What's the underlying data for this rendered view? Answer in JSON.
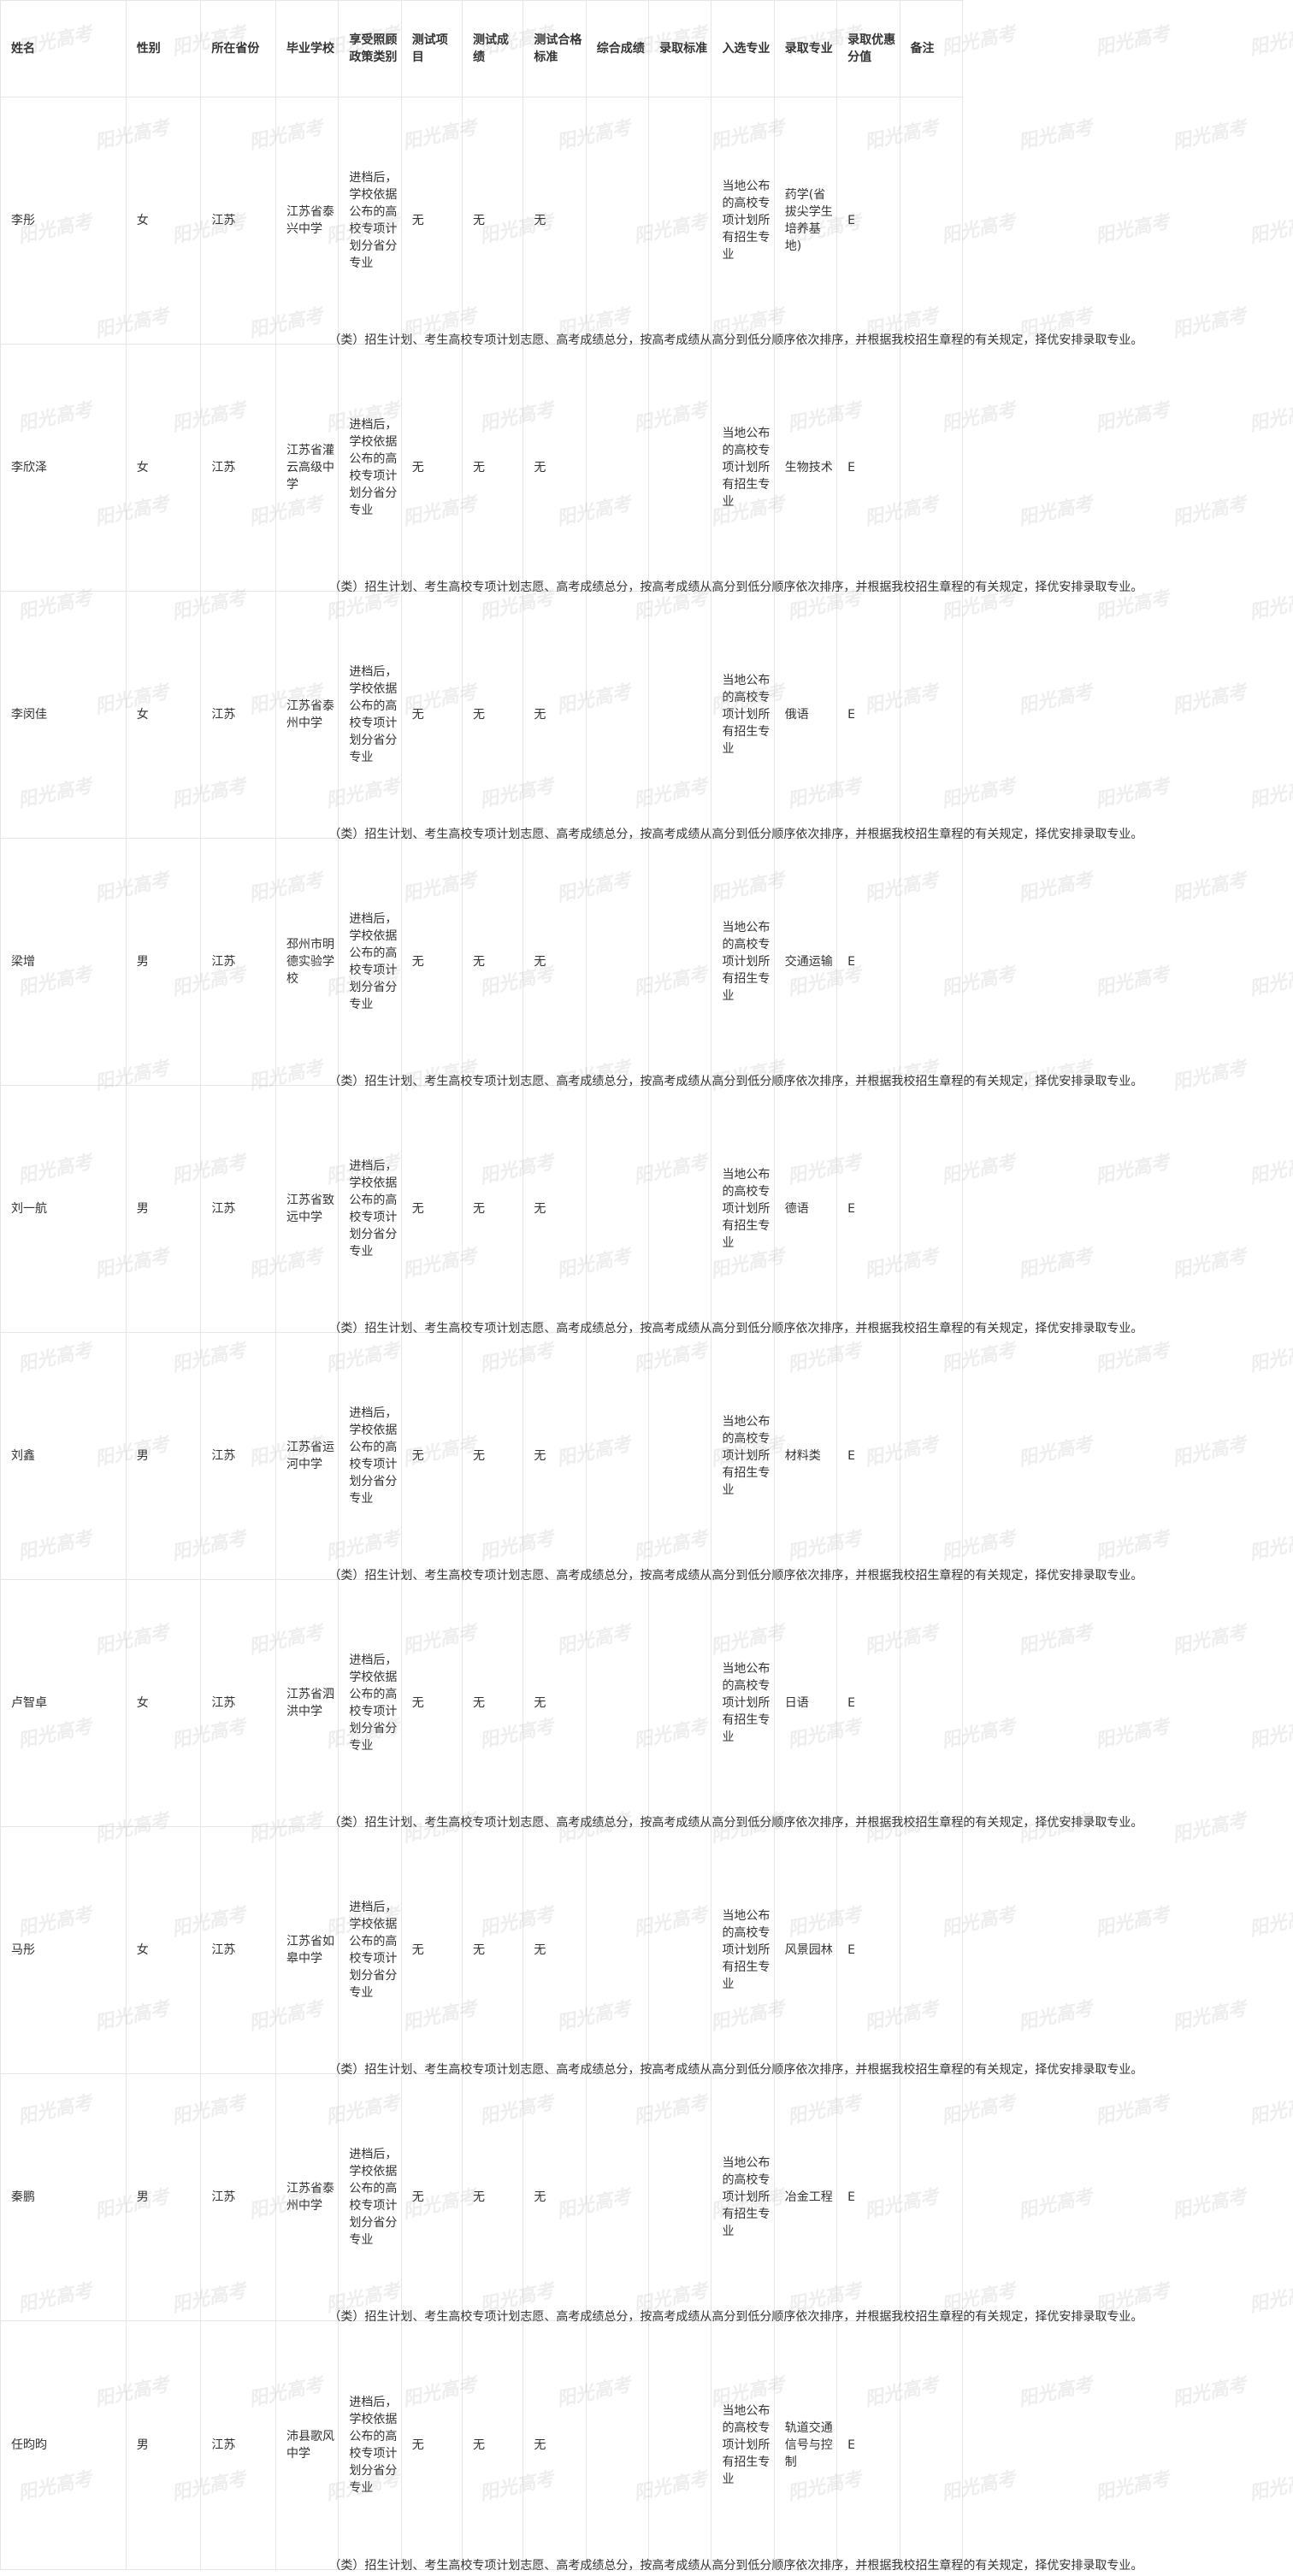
{
  "headers": [
    "姓名",
    "性别",
    "所在省份",
    "毕业学校",
    "享受照顾政策类别",
    "测试项目",
    "测试成绩",
    "测试合格标准",
    "综合成绩",
    "录取标准",
    "入选专业",
    "录取专业",
    "录取优惠分值",
    "备注"
  ],
  "watermark": "阳光高考",
  "rows": [
    {
      "name": "李彤",
      "gender": "女",
      "province": "江苏",
      "school": "江苏省泰兴中学",
      "policy_col": "进档后，学校依据公布的高校专项计划分省分专业",
      "policy_tail": "（类）招生计划、考生高校专项计划志愿、高考成绩总分，按高考成绩从高分到低分顺序依次排序，并根据我校招生章程的有关规定，择优安排录取专业。",
      "test_item": "无",
      "test_score": "无",
      "test_std": "无",
      "composite": "",
      "admit_std": "",
      "selected_major": "当地公布的高校专项计划所有招生专业",
      "admit_major": "药学(省拔尖学生培养基地)",
      "bonus": "E",
      "remark": ""
    },
    {
      "name": "李欣泽",
      "gender": "女",
      "province": "江苏",
      "school": "江苏省灌云高级中学",
      "policy_col": "进档后，学校依据公布的高校专项计划分省分专业",
      "policy_tail": "（类）招生计划、考生高校专项计划志愿、高考成绩总分，按高考成绩从高分到低分顺序依次排序，并根据我校招生章程的有关规定，择优安排录取专业。",
      "test_item": "无",
      "test_score": "无",
      "test_std": "无",
      "composite": "",
      "admit_std": "",
      "selected_major": "当地公布的高校专项计划所有招生专业",
      "admit_major": "生物技术",
      "bonus": "E",
      "remark": ""
    },
    {
      "name": "李闵佳",
      "gender": "女",
      "province": "江苏",
      "school": "江苏省泰州中学",
      "policy_col": "进档后，学校依据公布的高校专项计划分省分专业",
      "policy_tail": "（类）招生计划、考生高校专项计划志愿、高考成绩总分，按高考成绩从高分到低分顺序依次排序，并根据我校招生章程的有关规定，择优安排录取专业。",
      "test_item": "无",
      "test_score": "无",
      "test_std": "无",
      "composite": "",
      "admit_std": "",
      "selected_major": "当地公布的高校专项计划所有招生专业",
      "admit_major": "俄语",
      "bonus": "E",
      "remark": ""
    },
    {
      "name": "梁增",
      "gender": "男",
      "province": "江苏",
      "school": "邳州市明德实验学校",
      "policy_col": "进档后，学校依据公布的高校专项计划分省分专业",
      "policy_tail": "（类）招生计划、考生高校专项计划志愿、高考成绩总分，按高考成绩从高分到低分顺序依次排序，并根据我校招生章程的有关规定，择优安排录取专业。",
      "test_item": "无",
      "test_score": "无",
      "test_std": "无",
      "composite": "",
      "admit_std": "",
      "selected_major": "当地公布的高校专项计划所有招生专业",
      "admit_major": "交通运输",
      "bonus": "E",
      "remark": ""
    },
    {
      "name": "刘一航",
      "gender": "男",
      "province": "江苏",
      "school": "江苏省致远中学",
      "policy_col": "进档后，学校依据公布的高校专项计划分省分专业",
      "policy_tail": "（类）招生计划、考生高校专项计划志愿、高考成绩总分，按高考成绩从高分到低分顺序依次排序，并根据我校招生章程的有关规定，择优安排录取专业。",
      "test_item": "无",
      "test_score": "无",
      "test_std": "无",
      "composite": "",
      "admit_std": "",
      "selected_major": "当地公布的高校专项计划所有招生专业",
      "admit_major": "德语",
      "bonus": "E",
      "remark": ""
    },
    {
      "name": "刘鑫",
      "gender": "男",
      "province": "江苏",
      "school": "江苏省运河中学",
      "policy_col": "进档后，学校依据公布的高校专项计划分省分专业",
      "policy_tail": "（类）招生计划、考生高校专项计划志愿、高考成绩总分，按高考成绩从高分到低分顺序依次排序，并根据我校招生章程的有关规定，择优安排录取专业。",
      "test_item": "无",
      "test_score": "无",
      "test_std": "无",
      "composite": "",
      "admit_std": "",
      "selected_major": "当地公布的高校专项计划所有招生专业",
      "admit_major": "材料类",
      "bonus": "E",
      "remark": ""
    },
    {
      "name": "卢智卓",
      "gender": "女",
      "province": "江苏",
      "school": "江苏省泗洪中学",
      "policy_col": "进档后，学校依据公布的高校专项计划分省分专业",
      "policy_tail": "（类）招生计划、考生高校专项计划志愿、高考成绩总分，按高考成绩从高分到低分顺序依次排序，并根据我校招生章程的有关规定，择优安排录取专业。",
      "test_item": "无",
      "test_score": "无",
      "test_std": "无",
      "composite": "",
      "admit_std": "",
      "selected_major": "当地公布的高校专项计划所有招生专业",
      "admit_major": "日语",
      "bonus": "E",
      "remark": ""
    },
    {
      "name": "马彤",
      "gender": "女",
      "province": "江苏",
      "school": "江苏省如皋中学",
      "policy_col": "进档后，学校依据公布的高校专项计划分省分专业",
      "policy_tail": "（类）招生计划、考生高校专项计划志愿、高考成绩总分，按高考成绩从高分到低分顺序依次排序，并根据我校招生章程的有关规定，择优安排录取专业。",
      "test_item": "无",
      "test_score": "无",
      "test_std": "无",
      "composite": "",
      "admit_std": "",
      "selected_major": "当地公布的高校专项计划所有招生专业",
      "admit_major": "风景园林",
      "bonus": "E",
      "remark": ""
    },
    {
      "name": "秦鹏",
      "gender": "男",
      "province": "江苏",
      "school": "江苏省泰州中学",
      "policy_col": "进档后，学校依据公布的高校专项计划分省分专业",
      "policy_tail": "（类）招生计划、考生高校专项计划志愿、高考成绩总分，按高考成绩从高分到低分顺序依次排序，并根据我校招生章程的有关规定，择优安排录取专业。",
      "test_item": "无",
      "test_score": "无",
      "test_std": "无",
      "composite": "",
      "admit_std": "",
      "selected_major": "当地公布的高校专项计划所有招生专业",
      "admit_major": "冶金工程",
      "bonus": "E",
      "remark": ""
    },
    {
      "name": "任昀昀",
      "gender": "男",
      "province": "江苏",
      "school": "沛县歌风中学",
      "policy_col": "进档后，学校依据公布的高校专项计划分省分专业",
      "policy_tail": "（类）招生计划、考生高校专项计划志愿、高考成绩总分，按高考成绩从高分到低分顺序依次排序，并根据我校招生章程的有关规定，择优安排录取专业。",
      "test_item": "无",
      "test_score": "无",
      "test_std": "无",
      "composite": "",
      "admit_std": "",
      "selected_major": "当地公布的高校专项计划所有招生专业",
      "admit_major": "轨道交通信号与控制",
      "bonus": "E",
      "remark": ""
    }
  ]
}
